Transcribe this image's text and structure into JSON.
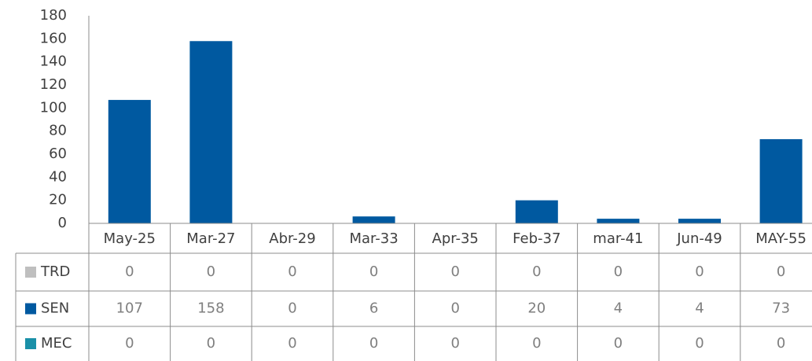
{
  "chart_data": {
    "type": "bar",
    "categories": [
      "May-25",
      "Mar-27",
      "Abr-29",
      "Mar-33",
      "Apr-35",
      "Feb-37",
      "mar-41",
      "Jun-49",
      "MAY-55"
    ],
    "series": [
      {
        "name": "TRD",
        "color": "#bfbfbf",
        "values": [
          0,
          0,
          0,
          0,
          0,
          0,
          0,
          0,
          0
        ]
      },
      {
        "name": "SEN",
        "color": "#0059a0",
        "values": [
          107,
          158,
          0,
          6,
          0,
          20,
          4,
          4,
          73
        ]
      },
      {
        "name": "MEC",
        "color": "#1a90a8",
        "values": [
          0,
          0,
          0,
          0,
          0,
          0,
          0,
          0,
          0
        ]
      }
    ],
    "ylim": [
      0,
      180
    ],
    "yticks": [
      0,
      20,
      40,
      60,
      80,
      100,
      120,
      140,
      160,
      180
    ],
    "grid": false,
    "data_table": true
  }
}
